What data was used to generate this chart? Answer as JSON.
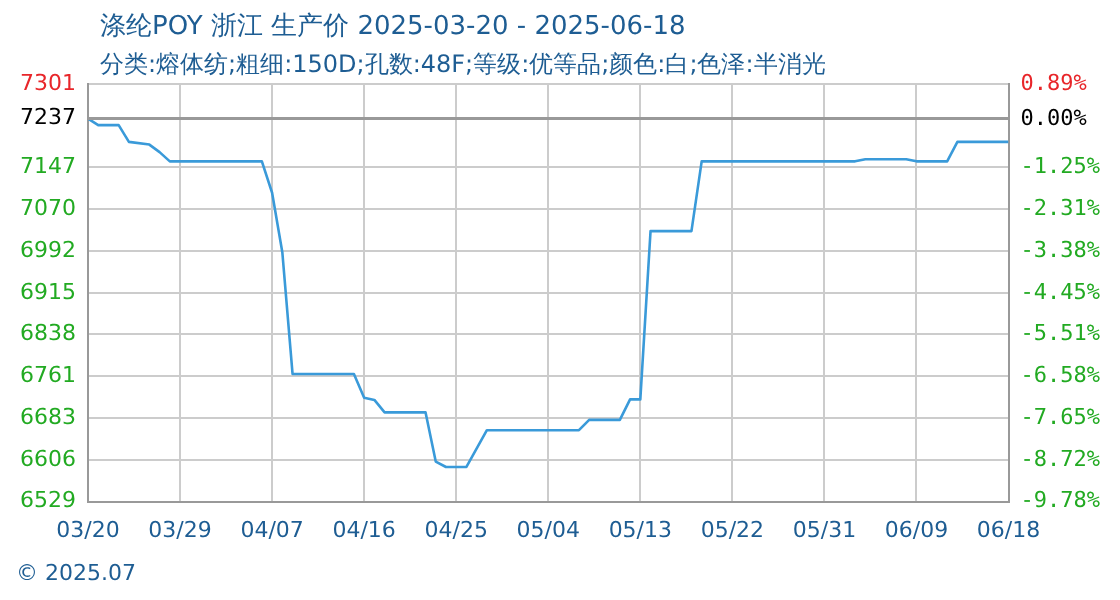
{
  "chart_data": {
    "type": "line",
    "title": "涤纶POY 浙江 生产价 2025-03-20 - 2025-06-18",
    "subtitle": "分类:熔体纺;粗细:150D;孔数:48F;等级:优等品;颜色:白;色泽:半消光",
    "annotations": [
      "© 2025.07"
    ],
    "x": [
      "2025-03-20",
      "2025-03-21",
      "2025-03-23",
      "2025-03-24",
      "2025-03-26",
      "2025-03-27",
      "2025-03-28",
      "2025-04-06",
      "2025-04-07",
      "2025-04-08",
      "2025-04-09",
      "2025-04-15",
      "2025-04-16",
      "2025-04-17",
      "2025-04-18",
      "2025-04-22",
      "2025-04-23",
      "2025-04-24",
      "2025-04-26",
      "2025-04-28",
      "2025-05-07",
      "2025-05-08",
      "2025-05-11",
      "2025-05-12",
      "2025-05-13",
      "2025-05-14",
      "2025-05-18",
      "2025-05-19",
      "2025-06-03",
      "2025-06-04",
      "2025-06-08",
      "2025-06-09",
      "2025-06-12",
      "2025-06-13",
      "2025-06-18"
    ],
    "series": [
      {
        "color": "#3a9ad9",
        "values": [
          7237,
          7225,
          7225,
          7194,
          7189,
          7175,
          7158,
          7158,
          7100,
          6990,
          6765,
          6765,
          6721,
          6717,
          6694,
          6694,
          6603,
          6593,
          6593,
          6661,
          6661,
          6680,
          6680,
          6718,
          6718,
          7029,
          7029,
          7158,
          7158,
          7162,
          7162,
          7158,
          7158,
          7194,
          7194
        ]
      }
    ],
    "xlim": [
      "2025-03-20",
      "2025-06-18"
    ],
    "xticks": [
      {
        "value": "2025-03-20",
        "label": "03/20"
      },
      {
        "value": "2025-03-29",
        "label": "03/29"
      },
      {
        "value": "2025-04-07",
        "label": "04/07"
      },
      {
        "value": "2025-04-16",
        "label": "04/16"
      },
      {
        "value": "2025-04-25",
        "label": "04/25"
      },
      {
        "value": "2025-05-04",
        "label": "05/04"
      },
      {
        "value": "2025-05-13",
        "label": "05/13"
      },
      {
        "value": "2025-05-22",
        "label": "05/22"
      },
      {
        "value": "2025-05-31",
        "label": "05/31"
      },
      {
        "value": "2025-06-09",
        "label": "06/09"
      },
      {
        "value": "2025-06-18",
        "label": "06/18"
      }
    ],
    "ylim": [
      6529,
      7301
    ],
    "yticks": [
      6529,
      6606,
      6683,
      6761,
      6838,
      6915,
      6992,
      7070,
      7147,
      7237,
      7301
    ],
    "y2lim": [
      -9.78,
      0.89
    ],
    "y2ticks": [
      {
        "value": -9.78,
        "label": "-9.78%"
      },
      {
        "value": -8.72,
        "label": "-8.72%"
      },
      {
        "value": -7.65,
        "label": "-7.65%"
      },
      {
        "value": -6.58,
        "label": "-6.58%"
      },
      {
        "value": -5.51,
        "label": "-5.51%"
      },
      {
        "value": -4.45,
        "label": "-4.45%"
      },
      {
        "value": -3.38,
        "label": "-3.38%"
      },
      {
        "value": -2.31,
        "label": "-2.31%"
      },
      {
        "value": -1.25,
        "label": "-1.25%"
      },
      {
        "value": 0,
        "label": "0.00%"
      },
      {
        "value": 0.89,
        "label": "0.89%"
      }
    ],
    "ref_lines": [
      {
        "axis": "y",
        "value": 7237,
        "color": "#999999"
      }
    ],
    "grid": true,
    "legend": false,
    "marker": "none",
    "line_style": "solid"
  }
}
